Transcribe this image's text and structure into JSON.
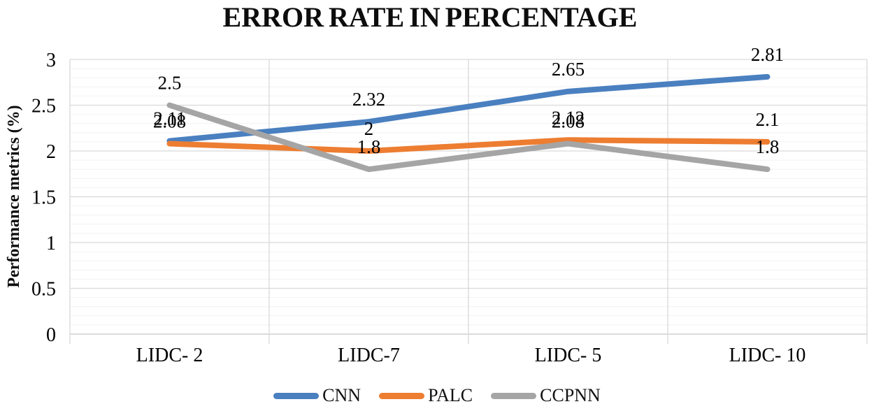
{
  "chart_data": {
    "type": "line",
    "title": "ERROR RATE IN PERCENTAGE",
    "ylabel": "Performance metrics (%)",
    "xlabel": "",
    "categories": [
      "LIDC- 2",
      "LIDC-7",
      "LIDC- 5",
      "LIDC- 10"
    ],
    "series": [
      {
        "name": "CNN",
        "color": "#4A80C0",
        "values": [
          2.11,
          2.32,
          2.65,
          2.81
        ],
        "data_labels": [
          "2.11",
          "2.32",
          "2.65",
          "2.81"
        ]
      },
      {
        "name": "PALC",
        "color": "#ED7D31",
        "values": [
          2.08,
          2.0,
          2.12,
          2.1
        ],
        "data_labels": [
          "2.08",
          "2",
          "2.12",
          "2.1"
        ]
      },
      {
        "name": "CCPNN",
        "color": "#A5A5A5",
        "values": [
          2.5,
          1.8,
          2.08,
          1.8
        ],
        "data_labels": [
          "2.5",
          "1.8",
          "2.08",
          "1.8"
        ]
      }
    ],
    "ylim": [
      0,
      3
    ],
    "yticks": [
      0,
      0.5,
      1,
      1.5,
      2,
      2.5,
      3
    ],
    "ytick_labels": [
      "0",
      "0.5",
      "1",
      "1.5",
      "2",
      "2.5",
      "3"
    ],
    "grid": {
      "major_step": 0.5,
      "minor_step": 0.1,
      "vertical_category_boundaries": true
    },
    "legend_position": "bottom",
    "legend": [
      "CNN",
      "PALC",
      "CCPNN"
    ],
    "colors": {
      "major_grid": "#D9D9D9",
      "minor_grid": "#F2F2F2",
      "axis_line": "#C6C6C6",
      "label_text": "#000000"
    }
  }
}
